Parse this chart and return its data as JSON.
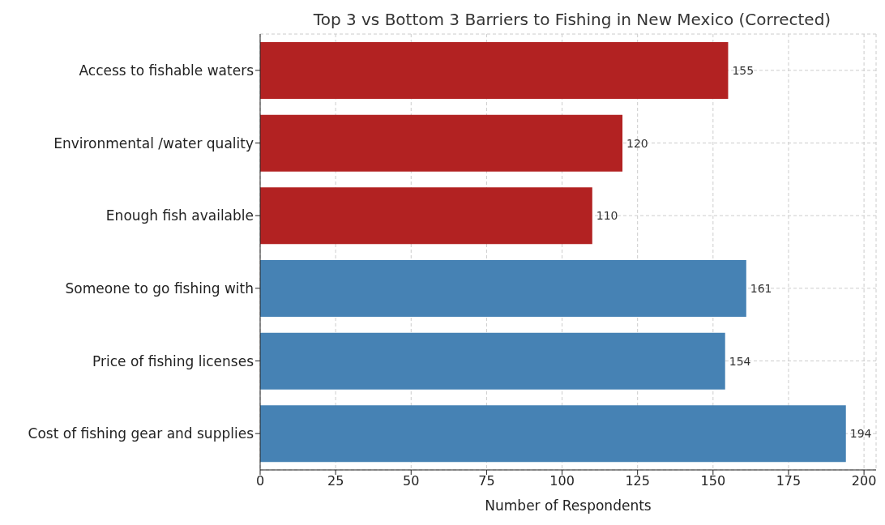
{
  "chart_data": {
    "type": "bar",
    "orientation": "horizontal",
    "title": "Top 3 vs Bottom 3 Barriers to Fishing in New Mexico (Corrected)",
    "xlabel": "Number of Respondents",
    "categories": [
      "Access to fishable waters",
      "Environmental /water quality",
      "Enough fish available",
      "Someone to go fishing with",
      "Price of fishing licenses",
      "Cost of fishing gear and supplies"
    ],
    "values": [
      155,
      120,
      110,
      161,
      154,
      194
    ],
    "colors": [
      "#b22222",
      "#b22222",
      "#b22222",
      "#4682b4",
      "#4682b4",
      "#4682b4"
    ],
    "xlim": [
      0,
      204
    ],
    "xticks": [
      0,
      25,
      50,
      75,
      100,
      125,
      150,
      175,
      200
    ],
    "grid": true,
    "data_labels": true
  }
}
